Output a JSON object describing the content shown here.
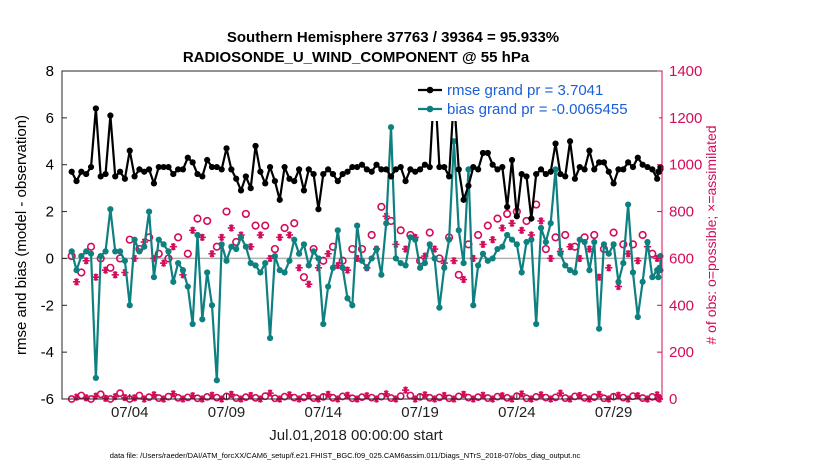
{
  "chart_data": {
    "type": "line",
    "title": "Southern Hemisphere 37763 / 39364 = 95.933%",
    "subtitle": "RADIOSONDE_U_WIND_COMPONENT @ 55 hPa",
    "ylabel": "rmse and bias (model - observation)",
    "y2label": "# of obs: o=possible; ×=assimilated",
    "xlabel": "Jul.01,2018 00:00:00 start",
    "footer": "data file: /Users/raeder/DAI/ATM_forcXX/CAM6_setup/f.e21.FHIST_BGC.f09_025.CAM6assim.011/Diags_NTrS_2018-07/obs_diag_output.nc",
    "ylim": [
      -6,
      8
    ],
    "y2lim": [
      0,
      1400
    ],
    "yticks": [
      "-6",
      "-4",
      "-2",
      "0",
      "2",
      "4",
      "6",
      "8"
    ],
    "y2ticks": [
      "0",
      "200",
      "400",
      "600",
      "800",
      "1000",
      "1200",
      "1400"
    ],
    "xlim": [
      0.5,
      31.5
    ],
    "xticks": [
      {
        "x": 4,
        "label": "07/04"
      },
      {
        "x": 9,
        "label": "07/09"
      },
      {
        "x": 14,
        "label": "07/14"
      },
      {
        "x": 19,
        "label": "07/19"
      },
      {
        "x": 24,
        "label": "07/24"
      },
      {
        "x": 29,
        "label": "07/29"
      }
    ],
    "x": [
      1.0,
      1.25,
      1.5,
      1.75,
      2.0,
      2.25,
      2.5,
      2.75,
      3.0,
      3.25,
      3.5,
      3.75,
      4.0,
      4.25,
      4.5,
      4.75,
      5.0,
      5.25,
      5.5,
      5.75,
      6.0,
      6.25,
      6.5,
      6.75,
      7.0,
      7.25,
      7.5,
      7.75,
      8.0,
      8.25,
      8.5,
      8.75,
      9.0,
      9.25,
      9.5,
      9.75,
      10.0,
      10.25,
      10.5,
      10.75,
      11.0,
      11.25,
      11.5,
      11.75,
      12.0,
      12.25,
      12.5,
      12.75,
      13.0,
      13.25,
      13.5,
      13.75,
      14.0,
      14.25,
      14.5,
      14.75,
      15.0,
      15.25,
      15.5,
      15.75,
      16.0,
      16.25,
      16.5,
      16.75,
      17.0,
      17.25,
      17.5,
      17.75,
      18.0,
      18.25,
      18.5,
      18.75,
      19.0,
      19.25,
      19.5,
      19.75,
      20.0,
      20.25,
      20.5,
      20.75,
      21.0,
      21.25,
      21.5,
      21.75,
      22.0,
      22.25,
      22.5,
      22.75,
      23.0,
      23.25,
      23.5,
      23.75,
      24.0,
      24.25,
      24.5,
      24.75,
      25.0,
      25.25,
      25.5,
      25.75,
      26.0,
      26.25,
      26.5,
      26.75,
      27.0,
      27.25,
      27.5,
      27.75,
      28.0,
      28.25,
      28.5,
      28.75,
      29.0,
      29.25,
      29.5,
      29.75,
      30.0,
      30.25,
      30.5,
      30.75,
      31.0,
      31.25
    ],
    "series": [
      {
        "name": "rmse",
        "legend": "rmse grand pr = 3.7041",
        "axis": "left",
        "color": "#000000",
        "values": [
          3.7,
          3.3,
          3.7,
          3.6,
          3.9,
          6.4,
          3.5,
          3.6,
          6.1,
          3.5,
          3.7,
          3.4,
          4.6,
          3.5,
          3.8,
          3.7,
          3.8,
          3.2,
          3.9,
          3.9,
          3.9,
          3.6,
          3.8,
          3.8,
          4.3,
          4.1,
          3.6,
          3.5,
          4.2,
          3.9,
          3.9,
          3.8,
          4.7,
          3.8,
          3.4,
          2.9,
          3.5,
          3.0,
          4.8,
          3.7,
          3.2,
          3.9,
          3.3,
          2.5,
          3.9,
          3.4,
          3.3,
          3.8,
          2.9,
          3.8,
          3.6,
          2.1,
          3.6,
          3.8,
          3.6,
          3.3,
          3.6,
          3.7,
          3.9,
          3.9,
          4.0,
          3.8,
          3.7,
          4.0,
          3.8,
          3.8,
          3.5,
          3.8,
          3.9,
          3.3,
          3.8,
          3.7,
          3.8,
          4.0,
          3.9,
          7.6,
          3.9,
          3.9,
          3.5,
          6.9,
          3.8,
          2.5,
          3.1,
          3.9,
          3.8,
          4.5,
          4.5,
          4.0,
          3.8,
          3.9,
          2.2,
          4.2,
          1.8,
          3.6,
          3.5,
          1.7,
          3.6,
          3.8,
          3.6,
          3.7,
          4.9,
          3.6,
          3.5,
          5.0,
          3.4,
          3.9,
          3.8,
          4.6,
          3.8,
          4.1,
          4.1,
          3.7,
          3.2,
          3.8,
          3.8,
          4.1,
          3.9,
          4.3,
          4.0,
          3.9,
          3.8,
          3.4
        ],
        "values_tail": [
          3.7,
          3.7,
          3.9,
          3.8
        ]
      },
      {
        "name": "bias",
        "legend": "bias grand pr = -0.0065455",
        "axis": "left",
        "color": "#0e8080",
        "values": [
          0.3,
          -0.5,
          0.1,
          0.3,
          0.2,
          -5.1,
          0.1,
          0.3,
          2.1,
          0.3,
          0.3,
          -0.1,
          -2.0,
          0.8,
          0.3,
          0.5,
          2.0,
          -0.8,
          0.8,
          0.6,
          0.3,
          -1.0,
          -0.2,
          -0.5,
          -1.2,
          -2.8,
          1.0,
          -2.6,
          -0.6,
          -2.0,
          -5.2,
          0.6,
          -0.1,
          0.5,
          0.4,
          0.9,
          0.5,
          -0.2,
          -0.3,
          -0.6,
          -0.2,
          -3.4,
          0.1,
          -0.5,
          -0.6,
          -0.1,
          0.8,
          0.2,
          0.6,
          -0.3,
          0.3,
          0.0,
          -2.8,
          -1.2,
          -0.4,
          1.2,
          -0.4,
          -1.7,
          -2.0,
          1.4,
          -0.1,
          -0.4,
          0.0,
          0.4,
          -0.7,
          1.5,
          5.6,
          0.0,
          -0.2,
          -0.3,
          0.9,
          0.8,
          -0.4,
          -0.2,
          0.6,
          0.0,
          -2.1,
          -0.4,
          0.8,
          5.0,
          1.2,
          -0.2,
          3.8,
          -2.0,
          -0.3,
          0.2,
          -0.1,
          0.0,
          0.4,
          0.5,
          1.0,
          0.8,
          0.6,
          -0.6,
          0.7,
          0.8,
          -2.8,
          1.3,
          0.7,
          1.5,
          3.8,
          0.2,
          -0.3,
          -0.5,
          -0.6,
          0.8,
          0.7,
          -0.5,
          0.7,
          -3.0,
          0.6,
          0.2,
          0.6,
          -1.0,
          -0.2,
          2.3,
          -0.6,
          -2.5,
          -1.0,
          0.7,
          -0.8,
          -0.5
        ],
        "values_tail": [
          -0.8,
          -0.4,
          -0.5,
          0.1
        ]
      }
    ],
    "obs_possible": [
      {
        "x": 1.0,
        "v": 610
      },
      {
        "x": 1.5,
        "v": 540
      },
      {
        "x": 2.0,
        "v": 650
      },
      {
        "x": 2.5,
        "v": 600
      },
      {
        "x": 3.0,
        "v": 560
      },
      {
        "x": 3.5,
        "v": 600
      },
      {
        "x": 4.0,
        "v": 680
      },
      {
        "x": 4.5,
        "v": 640
      },
      {
        "x": 5.0,
        "v": 690
      },
      {
        "x": 5.5,
        "v": 620
      },
      {
        "x": 6.0,
        "v": 600
      },
      {
        "x": 6.5,
        "v": 690
      },
      {
        "x": 7.0,
        "v": 620
      },
      {
        "x": 7.5,
        "v": 770
      },
      {
        "x": 8.0,
        "v": 760
      },
      {
        "x": 8.5,
        "v": 650
      },
      {
        "x": 9.0,
        "v": 800
      },
      {
        "x": 9.5,
        "v": 670
      },
      {
        "x": 10.0,
        "v": 790
      },
      {
        "x": 10.5,
        "v": 740
      },
      {
        "x": 11.0,
        "v": 740
      },
      {
        "x": 11.5,
        "v": 640
      },
      {
        "x": 12.0,
        "v": 730
      },
      {
        "x": 12.5,
        "v": 750
      },
      {
        "x": 13.0,
        "v": 520
      },
      {
        "x": 13.5,
        "v": 640
      },
      {
        "x": 14.0,
        "v": 590
      },
      {
        "x": 14.5,
        "v": 650
      },
      {
        "x": 15.0,
        "v": 590
      },
      {
        "x": 15.5,
        "v": 640
      },
      {
        "x": 16.0,
        "v": 640
      },
      {
        "x": 16.5,
        "v": 700
      },
      {
        "x": 17.0,
        "v": 820
      },
      {
        "x": 17.5,
        "v": 760
      },
      {
        "x": 18.0,
        "v": 720
      },
      {
        "x": 18.5,
        "v": 700
      },
      {
        "x": 19.0,
        "v": 590
      },
      {
        "x": 19.5,
        "v": 710
      },
      {
        "x": 20.0,
        "v": 600
      },
      {
        "x": 20.5,
        "v": 690
      },
      {
        "x": 21.0,
        "v": 530
      },
      {
        "x": 21.5,
        "v": 660
      },
      {
        "x": 22.0,
        "v": 700
      },
      {
        "x": 22.5,
        "v": 740
      },
      {
        "x": 23.0,
        "v": 770
      },
      {
        "x": 23.5,
        "v": 790
      },
      {
        "x": 24.0,
        "v": 800
      },
      {
        "x": 24.5,
        "v": 760
      },
      {
        "x": 25.0,
        "v": 830
      },
      {
        "x": 25.5,
        "v": 640
      },
      {
        "x": 26.0,
        "v": 690
      },
      {
        "x": 26.5,
        "v": 700
      },
      {
        "x": 27.0,
        "v": 650
      },
      {
        "x": 27.5,
        "v": 690
      },
      {
        "x": 28.0,
        "v": 700
      },
      {
        "x": 28.5,
        "v": 640
      },
      {
        "x": 29.0,
        "v": 710
      },
      {
        "x": 29.5,
        "v": 660
      },
      {
        "x": 30.0,
        "v": 660
      },
      {
        "x": 30.5,
        "v": 700
      },
      {
        "x": 31.0,
        "v": 620
      }
    ],
    "obs_assimilated": [
      {
        "x": 1.25,
        "v": 500
      },
      {
        "x": 1.75,
        "v": 590
      },
      {
        "x": 2.25,
        "v": 520
      },
      {
        "x": 2.75,
        "v": 550
      },
      {
        "x": 3.25,
        "v": 530
      },
      {
        "x": 3.75,
        "v": 540
      },
      {
        "x": 4.25,
        "v": 600
      },
      {
        "x": 4.75,
        "v": 670
      },
      {
        "x": 5.25,
        "v": 600
      },
      {
        "x": 5.75,
        "v": 580
      },
      {
        "x": 6.25,
        "v": 650
      },
      {
        "x": 6.75,
        "v": 530
      },
      {
        "x": 7.25,
        "v": 720
      },
      {
        "x": 7.75,
        "v": 690
      },
      {
        "x": 8.25,
        "v": 620
      },
      {
        "x": 8.75,
        "v": 690
      },
      {
        "x": 9.25,
        "v": 730
      },
      {
        "x": 9.75,
        "v": 700
      },
      {
        "x": 10.25,
        "v": 650
      },
      {
        "x": 10.75,
        "v": 700
      },
      {
        "x": 11.25,
        "v": 600
      },
      {
        "x": 11.75,
        "v": 690
      },
      {
        "x": 12.25,
        "v": 700
      },
      {
        "x": 12.75,
        "v": 560
      },
      {
        "x": 13.25,
        "v": 490
      },
      {
        "x": 13.75,
        "v": 560
      },
      {
        "x": 14.25,
        "v": 620
      },
      {
        "x": 14.75,
        "v": 570
      },
      {
        "x": 15.25,
        "v": 550
      },
      {
        "x": 15.75,
        "v": 600
      },
      {
        "x": 16.25,
        "v": 560
      },
      {
        "x": 16.75,
        "v": 640
      },
      {
        "x": 17.25,
        "v": 780
      },
      {
        "x": 17.75,
        "v": 660
      },
      {
        "x": 18.25,
        "v": 640
      },
      {
        "x": 18.75,
        "v": 690
      },
      {
        "x": 19.25,
        "v": 610
      },
      {
        "x": 19.75,
        "v": 640
      },
      {
        "x": 20.25,
        "v": 580
      },
      {
        "x": 20.75,
        "v": 590
      },
      {
        "x": 21.25,
        "v": 510
      },
      {
        "x": 21.75,
        "v": 600
      },
      {
        "x": 22.25,
        "v": 660
      },
      {
        "x": 22.75,
        "v": 680
      },
      {
        "x": 23.25,
        "v": 730
      },
      {
        "x": 23.75,
        "v": 750
      },
      {
        "x": 24.25,
        "v": 720
      },
      {
        "x": 24.75,
        "v": 700
      },
      {
        "x": 25.25,
        "v": 760
      },
      {
        "x": 25.75,
        "v": 600
      },
      {
        "x": 26.25,
        "v": 630
      },
      {
        "x": 26.75,
        "v": 650
      },
      {
        "x": 27.25,
        "v": 600
      },
      {
        "x": 27.75,
        "v": 640
      },
      {
        "x": 28.25,
        "v": 520
      },
      {
        "x": 28.75,
        "v": 560
      },
      {
        "x": 29.25,
        "v": 480
      },
      {
        "x": 29.75,
        "v": 620
      },
      {
        "x": 30.25,
        "v": 590
      },
      {
        "x": 30.75,
        "v": 650
      },
      {
        "x": 31.25,
        "v": 600
      }
    ],
    "near_zero_count": [
      0,
      8,
      15,
      5,
      0,
      12,
      20,
      3,
      0,
      10,
      25,
      6,
      0,
      5,
      15,
      0,
      8,
      18,
      4,
      0,
      10,
      22,
      5,
      0,
      7,
      14,
      3,
      0,
      9,
      16,
      6,
      0,
      11,
      20,
      4,
      0,
      8,
      15,
      5,
      0,
      12,
      25,
      3,
      0,
      10,
      18,
      6,
      0,
      7,
      15,
      4,
      0,
      9,
      20,
      5,
      0,
      11,
      16,
      3,
      0,
      8,
      14,
      6,
      0,
      10,
      22,
      4,
      0,
      12,
      38,
      15,
      0,
      9,
      18,
      5,
      0,
      7,
      15,
      3,
      0,
      11,
      20,
      6,
      0,
      8,
      16,
      4,
      0,
      10,
      14,
      5,
      0,
      12,
      22,
      3,
      0,
      9,
      18,
      6,
      0,
      7,
      25,
      4,
      0,
      11,
      15,
      5,
      0,
      8,
      20,
      3,
      0,
      10,
      16,
      6,
      0,
      12,
      14,
      4,
      0,
      9,
      18,
      5,
      0
    ],
    "colors": {
      "rmse": "#000000",
      "bias": "#0e8080",
      "obs": "#d40b5a",
      "legend_text": "#1a5fd6",
      "zero_line": "#b0b0b0"
    },
    "legend_placement": "top-right"
  }
}
